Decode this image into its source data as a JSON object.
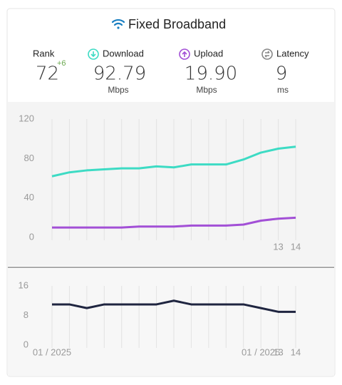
{
  "header": {
    "title": "Fixed Broadband",
    "stats": [
      {
        "label": "Rank",
        "value": "72",
        "change": "+6"
      },
      {
        "label": "Download",
        "value": "92.79",
        "unit": "Mbps"
      },
      {
        "label": "Upload",
        "value": "19.90",
        "unit": "Mbps"
      },
      {
        "label": "Latency",
        "value": "9",
        "unit": "ms"
      }
    ]
  },
  "chart_data": [
    {
      "type": "line",
      "categories": [
        null,
        null,
        null,
        null,
        null,
        null,
        null,
        null,
        null,
        null,
        null,
        null,
        null,
        "13",
        "14"
      ],
      "series": [
        {
          "color": "#3ddbc4",
          "values": [
            62,
            66,
            68,
            69,
            70,
            70,
            72,
            71,
            74,
            74,
            74,
            79,
            86,
            90,
            92
          ]
        },
        {
          "color": "#a24fd6",
          "values": [
            10,
            10,
            10,
            10,
            10,
            11,
            11,
            11,
            12,
            12,
            12,
            13,
            17,
            19,
            20
          ]
        }
      ],
      "ylim": [
        0,
        120
      ],
      "yticks": [
        0,
        40,
        80,
        120
      ],
      "grid": true
    },
    {
      "type": "line",
      "categories": [
        "01 / 2025",
        null,
        null,
        null,
        null,
        null,
        null,
        null,
        null,
        null,
        null,
        null,
        "01 / 2025",
        "13",
        "14"
      ],
      "series": [
        {
          "color": "#1f2540",
          "values": [
            11,
            11,
            10,
            11,
            11,
            11,
            11,
            12,
            11,
            11,
            11,
            11,
            10,
            9,
            9
          ]
        }
      ],
      "ylim": [
        0,
        16
      ],
      "yticks": [
        0,
        8,
        16
      ],
      "grid": true
    }
  ]
}
